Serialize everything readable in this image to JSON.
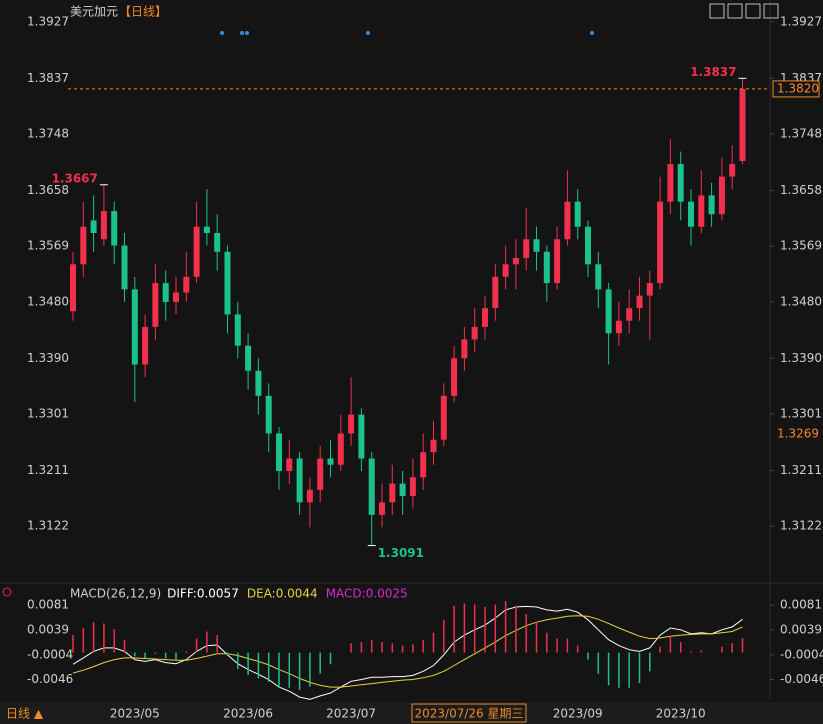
{
  "chart_data": [
    {
      "type": "candlestick",
      "title": "美元加元",
      "period": "【日线】",
      "categories": [
        null,
        null,
        null,
        null,
        null,
        null,
        "2023/05",
        null,
        null,
        null,
        null,
        null,
        null,
        null,
        null,
        null,
        null,
        "2023/06",
        null,
        null,
        null,
        null,
        null,
        null,
        null,
        null,
        null,
        "2023/07",
        null,
        null,
        null,
        null,
        null,
        null,
        null,
        null,
        null,
        null,
        null,
        null,
        null,
        null,
        null,
        null,
        null,
        null,
        null,
        null,
        null,
        "2023/09",
        null,
        null,
        null,
        null,
        null,
        null,
        null,
        null,
        null,
        "2023/10",
        null,
        null,
        null,
        null,
        null,
        null
      ],
      "ohlc": [
        [
          1.3465,
          1.356,
          1.345,
          1.354
        ],
        [
          1.354,
          1.364,
          1.352,
          1.36
        ],
        [
          1.361,
          1.365,
          1.356,
          1.359
        ],
        [
          1.358,
          1.3667,
          1.357,
          1.3625
        ],
        [
          1.3625,
          1.364,
          1.354,
          1.357
        ],
        [
          1.357,
          1.359,
          1.348,
          1.35
        ],
        [
          1.35,
          1.352,
          1.332,
          1.338
        ],
        [
          1.338,
          1.346,
          1.336,
          1.344
        ],
        [
          1.344,
          1.354,
          1.342,
          1.351
        ],
        [
          1.351,
          1.353,
          1.345,
          1.348
        ],
        [
          1.348,
          1.352,
          1.346,
          1.3495
        ],
        [
          1.3495,
          1.356,
          1.348,
          1.352
        ],
        [
          1.352,
          1.364,
          1.351,
          1.36
        ],
        [
          1.36,
          1.366,
          1.357,
          1.359
        ],
        [
          1.359,
          1.362,
          1.353,
          1.356
        ],
        [
          1.356,
          1.357,
          1.343,
          1.346
        ],
        [
          1.346,
          1.348,
          1.339,
          1.341
        ],
        [
          1.341,
          1.343,
          1.334,
          1.337
        ],
        [
          1.337,
          1.339,
          1.33,
          1.333
        ],
        [
          1.333,
          1.335,
          1.324,
          1.327
        ],
        [
          1.327,
          1.328,
          1.318,
          1.321
        ],
        [
          1.321,
          1.326,
          1.319,
          1.323
        ],
        [
          1.323,
          1.324,
          1.314,
          1.316
        ],
        [
          1.316,
          1.32,
          1.312,
          1.318
        ],
        [
          1.318,
          1.325,
          1.316,
          1.323
        ],
        [
          1.323,
          1.326,
          1.32,
          1.322
        ],
        [
          1.322,
          1.33,
          1.321,
          1.327
        ],
        [
          1.327,
          1.336,
          1.325,
          1.33
        ],
        [
          1.33,
          1.331,
          1.321,
          1.323
        ],
        [
          1.323,
          1.324,
          1.3091,
          1.314
        ],
        [
          1.314,
          1.319,
          1.312,
          1.316
        ],
        [
          1.316,
          1.322,
          1.314,
          1.319
        ],
        [
          1.319,
          1.321,
          1.314,
          1.317
        ],
        [
          1.317,
          1.323,
          1.315,
          1.32
        ],
        [
          1.32,
          1.327,
          1.318,
          1.324
        ],
        [
          1.324,
          1.329,
          1.322,
          1.326
        ],
        [
          1.326,
          1.335,
          1.325,
          1.333
        ],
        [
          1.333,
          1.341,
          1.332,
          1.339
        ],
        [
          1.339,
          1.344,
          1.337,
          1.342
        ],
        [
          1.342,
          1.347,
          1.34,
          1.344
        ],
        [
          1.344,
          1.349,
          1.342,
          1.347
        ],
        [
          1.347,
          1.354,
          1.345,
          1.352
        ],
        [
          1.352,
          1.357,
          1.35,
          1.354
        ],
        [
          1.354,
          1.358,
          1.35,
          1.355
        ],
        [
          1.355,
          1.363,
          1.353,
          1.358
        ],
        [
          1.358,
          1.36,
          1.353,
          1.356
        ],
        [
          1.356,
          1.357,
          1.348,
          1.351
        ],
        [
          1.351,
          1.36,
          1.35,
          1.358
        ],
        [
          1.358,
          1.369,
          1.357,
          1.364
        ],
        [
          1.364,
          1.366,
          1.358,
          1.36
        ],
        [
          1.36,
          1.361,
          1.352,
          1.354
        ],
        [
          1.354,
          1.356,
          1.347,
          1.35
        ],
        [
          1.35,
          1.351,
          1.338,
          1.343
        ],
        [
          1.343,
          1.348,
          1.341,
          1.345
        ],
        [
          1.345,
          1.35,
          1.343,
          1.347
        ],
        [
          1.347,
          1.352,
          1.345,
          1.349
        ],
        [
          1.349,
          1.353,
          1.342,
          1.351
        ],
        [
          1.351,
          1.368,
          1.35,
          1.364
        ],
        [
          1.364,
          1.374,
          1.362,
          1.37
        ],
        [
          1.37,
          1.372,
          1.361,
          1.364
        ],
        [
          1.364,
          1.366,
          1.357,
          1.36
        ],
        [
          1.36,
          1.369,
          1.359,
          1.365
        ],
        [
          1.365,
          1.367,
          1.36,
          1.362
        ],
        [
          1.362,
          1.371,
          1.361,
          1.368
        ],
        [
          1.368,
          1.373,
          1.366,
          1.37
        ],
        [
          1.3705,
          1.3837,
          1.37,
          1.382
        ]
      ],
      "up_color": "#f0304c",
      "down_color": "#1cc28c",
      "ylim": [
        1.3036,
        1.3946
      ],
      "yticks": [
        1.3927,
        1.3837,
        1.3748,
        1.3658,
        1.3569,
        {
          "value": 1.348,
          "label": "1.3480"
        },
        {
          "value": 1.339,
          "label": "1.3390"
        },
        1.3301,
        1.3211,
        1.3122
      ],
      "grid": false,
      "last_price": {
        "value": 1.382,
        "label": "1.3820"
      },
      "marker_price": 1.3269,
      "high_labels": [
        1.3667,
        1.3837
      ],
      "low_labels": [
        1.3091
      ],
      "cursor_label": "2023/07/26 星期三",
      "period_switch": "日线 ▲"
    },
    {
      "type": "macd",
      "title": "MACD(26,12,9)",
      "series": [
        {
          "name": "DIFF:0.0057",
          "color": "#ffffff",
          "values": [
            -0.002,
            -0.0009,
            0.0002,
            0.0008,
            0.0008,
            0.0002,
            -0.0012,
            -0.0015,
            -0.0012,
            -0.0017,
            -0.0019,
            -0.0012,
            0.0002,
            0.0012,
            0.0013,
            -0.0004,
            -0.0019,
            -0.0029,
            -0.0037,
            -0.0046,
            -0.0059,
            -0.0066,
            -0.0076,
            -0.008,
            -0.0074,
            -0.0069,
            -0.0059,
            -0.0049,
            -0.0046,
            -0.0042,
            -0.0042,
            -0.0041,
            -0.0041,
            -0.0039,
            -0.0032,
            -0.0022,
            -0.0004,
            0.0018,
            0.003,
            0.0039,
            0.0047,
            0.0059,
            0.0073,
            0.0078,
            0.0079,
            0.0078,
            0.0073,
            0.0071,
            0.0074,
            0.0069,
            0.0056,
            0.0039,
            0.0022,
            0.0012,
            0.0005,
            0.0002,
            0.0008,
            0.003,
            0.0042,
            0.0039,
            0.0032,
            0.0034,
            0.0032,
            0.0039,
            0.0044,
            0.0057
          ]
        },
        {
          "name": "DEA:0.0044",
          "color": "#e6d43a",
          "values": [
            -0.0035,
            -0.003,
            -0.0024,
            -0.0017,
            -0.0012,
            -0.0009,
            -0.0009,
            -0.001,
            -0.0011,
            -0.0012,
            -0.0013,
            -0.0013,
            -0.001,
            -0.0006,
            -0.0002,
            -0.0002,
            -0.0005,
            -0.001,
            -0.0015,
            -0.0021,
            -0.0029,
            -0.0036,
            -0.0044,
            -0.0051,
            -0.0056,
            -0.0059,
            -0.0059,
            -0.0057,
            -0.0055,
            -0.0053,
            -0.0051,
            -0.0049,
            -0.0047,
            -0.0046,
            -0.0043,
            -0.0039,
            -0.0032,
            -0.0022,
            -0.0012,
            -0.0002,
            0.0008,
            0.0018,
            0.0029,
            0.0038,
            0.0046,
            0.0052,
            0.0056,
            0.0059,
            0.0062,
            0.0063,
            0.0062,
            0.0057,
            0.005,
            0.0042,
            0.0035,
            0.0028,
            0.0024,
            0.0025,
            0.0028,
            0.003,
            0.0031,
            0.0032,
            0.0032,
            0.0034,
            0.0036,
            0.0044
          ]
        },
        {
          "name": "MACD:0.0025",
          "color": "#d42bd4",
          "up_color": "#f0304c",
          "down_color": "#1cc28c",
          "bars": true,
          "values": [
            0.003,
            0.0042,
            0.0052,
            0.005,
            0.004,
            0.0022,
            -0.0006,
            -0.001,
            -0.0002,
            -0.001,
            -0.0012,
            0.0002,
            0.0024,
            0.0036,
            0.003,
            -0.0004,
            -0.0028,
            -0.0038,
            -0.0044,
            -0.005,
            -0.006,
            -0.006,
            -0.0064,
            -0.0058,
            -0.0036,
            -0.002,
            0,
            0.0016,
            0.0018,
            0.0022,
            0.0018,
            0.0016,
            0.0012,
            0.0014,
            0.0022,
            0.0034,
            0.0056,
            0.008,
            0.0084,
            0.0082,
            0.0078,
            0.0082,
            0.0088,
            0.008,
            0.0066,
            0.0052,
            0.0034,
            0.0024,
            0.0024,
            0.0012,
            -0.0012,
            -0.0036,
            -0.0056,
            -0.006,
            -0.006,
            -0.0052,
            -0.0032,
            0.001,
            0.0028,
            0.0018,
            0.0002,
            0.0004,
            0,
            0.001,
            0.0016,
            0.0025
          ]
        }
      ],
      "ylim": [
        -0.0081,
        0.0107
      ],
      "yticks": [
        0.0081,
        0.0039,
        -0.0004,
        -0.0046
      ]
    }
  ]
}
